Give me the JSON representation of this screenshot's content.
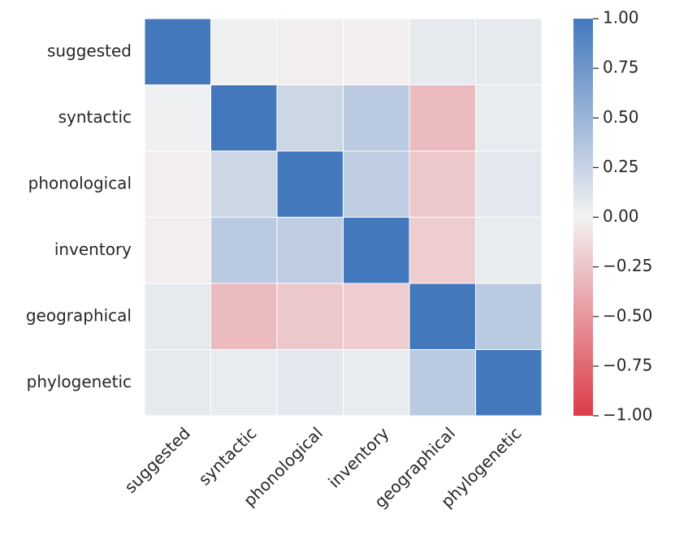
{
  "chart_data": {
    "type": "heatmap",
    "title": "",
    "xlabel": "",
    "ylabel": "",
    "rows": [
      "suggested",
      "syntactic",
      "phonological",
      "inventory",
      "geographical",
      "phylogenetic"
    ],
    "columns": [
      "suggested",
      "syntactic",
      "phonological",
      "inventory",
      "geographical",
      "phylogenetic"
    ],
    "values": [
      [
        1.0,
        0.02,
        -0.02,
        -0.02,
        0.07,
        0.07
      ],
      [
        0.02,
        1.0,
        0.22,
        0.32,
        -0.3,
        0.06
      ],
      [
        -0.02,
        0.22,
        1.0,
        0.3,
        -0.23,
        0.08
      ],
      [
        -0.02,
        0.32,
        0.3,
        1.0,
        -0.2,
        0.05
      ],
      [
        0.07,
        -0.3,
        -0.23,
        -0.2,
        1.0,
        0.33
      ],
      [
        0.07,
        0.06,
        0.08,
        0.05,
        0.33,
        1.0
      ]
    ],
    "colorbar": {
      "min": -1.0,
      "max": 1.0,
      "ticks": [
        1.0,
        0.75,
        0.5,
        0.25,
        0.0,
        -0.25,
        -0.5,
        -0.75,
        -1.0
      ],
      "tick_labels": [
        "1.00",
        "0.75",
        "0.50",
        "0.25",
        "0.00",
        "−0.25",
        "−0.50",
        "−0.75",
        "−1.00"
      ],
      "colors": {
        "negative": "#dc3b48",
        "center": "#f2f2f2",
        "positive": "#4478bd"
      }
    }
  }
}
